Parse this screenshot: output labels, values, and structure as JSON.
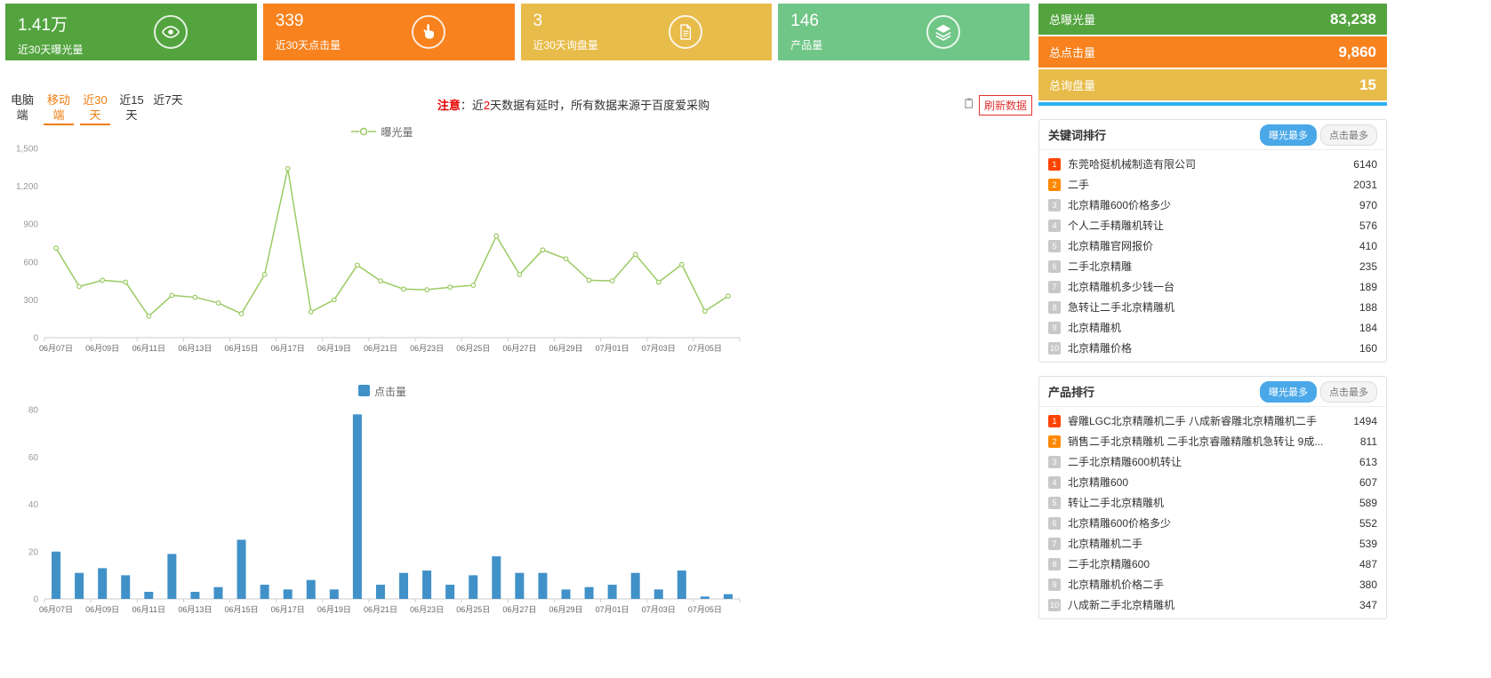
{
  "cards": [
    {
      "value": "1.41万",
      "label": "近30天曝光量",
      "icon": "eye-icon",
      "color": "#53a43f"
    },
    {
      "value": "339",
      "label": "近30天点击量",
      "icon": "pointer-icon",
      "color": "#f8821e"
    },
    {
      "value": "3",
      "label": "近30天询盘量",
      "icon": "document-icon",
      "color": "#e8bc4a"
    },
    {
      "value": "146",
      "label": "产品量",
      "icon": "layers-icon",
      "color": "#70c687"
    }
  ],
  "totals": [
    {
      "label": "总曝光量",
      "value": "83,238",
      "color": "#53a43f"
    },
    {
      "label": "总点击量",
      "value": "9,860",
      "color": "#f8821e"
    },
    {
      "label": "总询盘量",
      "value": "15",
      "color": "#e8bc4a"
    }
  ],
  "filters": {
    "items": [
      {
        "label": "电脑端",
        "active": false
      },
      {
        "label": "移动端",
        "active": true
      },
      {
        "label": "近30天",
        "active": true
      },
      {
        "label": "近15天",
        "active": false
      },
      {
        "label": "近7天",
        "active": false
      }
    ]
  },
  "notice": {
    "label": "注意",
    "pre": "：近",
    "num": "2",
    "post": "天数据有延时，所有数据来源于百度爱采购"
  },
  "refresh_button": "刷新数据",
  "keyword_panel": {
    "title": "关键词排行",
    "active_tab": 0,
    "tabs": [
      {
        "label": "曝光最多"
      },
      {
        "label": "点击最多"
      }
    ],
    "rows": [
      {
        "rank": "1",
        "text": "东莞哈挺机械制造有限公司",
        "value": "6140"
      },
      {
        "rank": "2",
        "text": "二手",
        "value": "2031"
      },
      {
        "rank": "3",
        "text": "北京精雕600价格多少",
        "value": "970"
      },
      {
        "rank": "4",
        "text": "个人二手精雕机转让",
        "value": "576"
      },
      {
        "rank": "5",
        "text": "北京精雕官网报价",
        "value": "410"
      },
      {
        "rank": "6",
        "text": "二手北京精雕",
        "value": "235"
      },
      {
        "rank": "7",
        "text": "北京精雕机多少钱一台",
        "value": "189"
      },
      {
        "rank": "8",
        "text": "急转让二手北京精雕机",
        "value": "188"
      },
      {
        "rank": "9",
        "text": "北京精雕机",
        "value": "184"
      },
      {
        "rank": "10",
        "text": "北京精雕价格",
        "value": "160"
      }
    ]
  },
  "product_panel": {
    "title": "产品排行",
    "active_tab": 0,
    "tabs": [
      {
        "label": "曝光最多"
      },
      {
        "label": "点击最多"
      }
    ],
    "rows": [
      {
        "rank": "1",
        "text": "睿雕LGC北京精雕机二手 八成新睿雕北京精雕机二手",
        "value": "1494"
      },
      {
        "rank": "2",
        "text": "销售二手北京精雕机 二手北京睿雕精雕机急转让 9成...",
        "value": "811"
      },
      {
        "rank": "3",
        "text": "二手北京精雕600机转让",
        "value": "613"
      },
      {
        "rank": "4",
        "text": "北京精雕600",
        "value": "607"
      },
      {
        "rank": "5",
        "text": "转让二手北京精雕机",
        "value": "589"
      },
      {
        "rank": "6",
        "text": "北京精雕600价格多少",
        "value": "552"
      },
      {
        "rank": "7",
        "text": "北京精雕机二手",
        "value": "539"
      },
      {
        "rank": "8",
        "text": "二手北京精雕600",
        "value": "487"
      },
      {
        "rank": "9",
        "text": "北京精雕机价格二手",
        "value": "380"
      },
      {
        "rank": "10",
        "text": "八成新二手北京精雕机",
        "value": "347"
      }
    ]
  },
  "chart_data": [
    {
      "type": "line",
      "legend": "曝光量",
      "color": "#9bca63",
      "ylim": [
        0,
        1500
      ],
      "yticks": [
        0,
        300,
        600,
        900,
        1200,
        1500
      ],
      "xtick_step": 2,
      "x": [
        "06月07日",
        "06月08日",
        "06月09日",
        "06月10日",
        "06月11日",
        "06月12日",
        "06月13日",
        "06月14日",
        "06月15日",
        "06月16日",
        "06月17日",
        "06月18日",
        "06月19日",
        "06月20日",
        "06月21日",
        "06月22日",
        "06月23日",
        "06月24日",
        "06月25日",
        "06月26日",
        "06月27日",
        "06月28日",
        "06月29日",
        "06月30日",
        "07月01日",
        "07月02日",
        "07月03日",
        "07月04日",
        "07月05日",
        "07月06日"
      ],
      "values": [
        710,
        405,
        455,
        440,
        170,
        335,
        320,
        275,
        190,
        500,
        1340,
        205,
        300,
        575,
        450,
        385,
        380,
        400,
        415,
        805,
        500,
        695,
        625,
        455,
        450,
        660,
        440,
        580,
        210,
        330
      ]
    },
    {
      "type": "bar",
      "legend": "点击量",
      "color": "#4191c9",
      "ylim": [
        0,
        80
      ],
      "yticks": [
        0,
        20,
        40,
        60,
        80
      ],
      "xtick_step": 2,
      "x": [
        "06月07日",
        "06月08日",
        "06月09日",
        "06月10日",
        "06月11日",
        "06月12日",
        "06月13日",
        "06月14日",
        "06月15日",
        "06月16日",
        "06月17日",
        "06月18日",
        "06月19日",
        "06月20日",
        "06月21日",
        "06月22日",
        "06月23日",
        "06月24日",
        "06月25日",
        "06月26日",
        "06月27日",
        "06月28日",
        "06月29日",
        "06月30日",
        "07月01日",
        "07月02日",
        "07月03日",
        "07月04日",
        "07月05日",
        "07月06日"
      ],
      "values": [
        20,
        11,
        13,
        10,
        3,
        19,
        3,
        5,
        25,
        6,
        4,
        8,
        4,
        78,
        6,
        11,
        12,
        6,
        10,
        18,
        11,
        11,
        4,
        5,
        6,
        11,
        4,
        12,
        1,
        2
      ]
    }
  ]
}
